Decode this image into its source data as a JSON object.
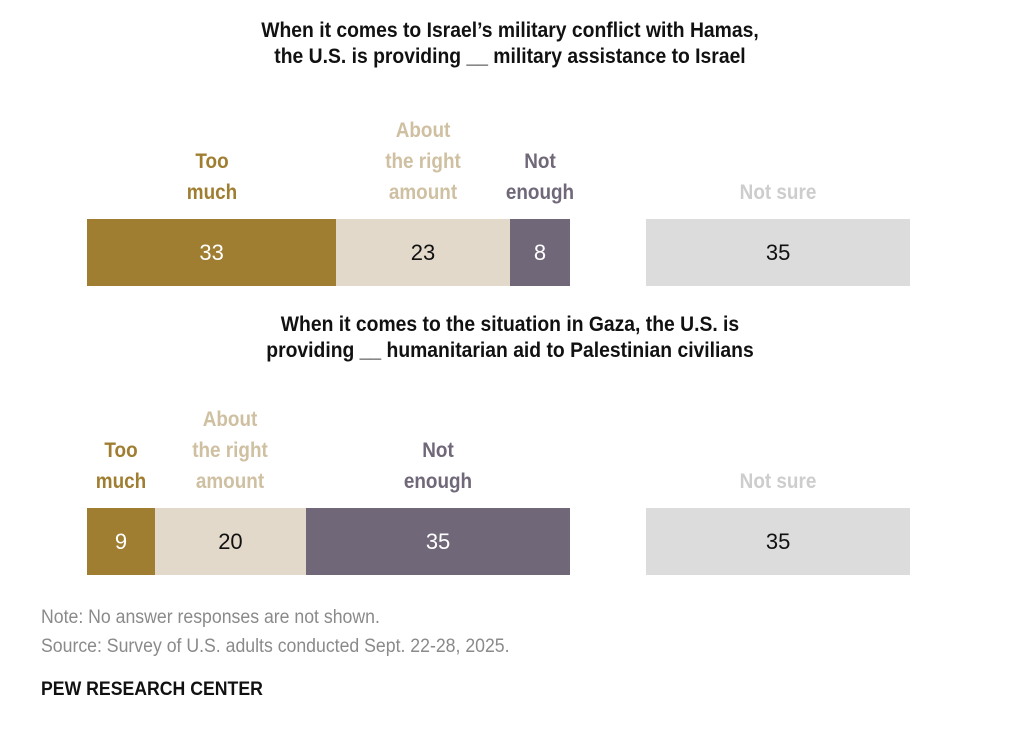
{
  "colors": {
    "too_much": "#a07e31",
    "about_right": "#e2d9ca",
    "not_enough": "#706879",
    "not_sure": "#dcdcdc",
    "label_too_much": "#a07e31",
    "label_about_right": "#cfc0a2",
    "label_not_enough": "#706879",
    "label_not_sure": "#cdcdcd"
  },
  "chart_data": {
    "type": "bar",
    "orientation": "horizontal-stacked",
    "unit": "percent",
    "categories": [
      "Too much",
      "About the right amount",
      "Not enough",
      "Not sure"
    ],
    "panels": [
      {
        "title": "When it comes to Israel’s military conflict with Hamas,\nthe U.S. is providing __ military assistance to Israel",
        "labels": [
          "Too\nmuch",
          "About\nthe right\namount",
          "Not\nenough",
          "Not sure"
        ],
        "values": [
          33,
          23,
          8,
          35
        ]
      },
      {
        "title": "When it comes to the situation in Gaza, the U.S. is\nproviding __ humanitarian aid to Palestinian civilians",
        "labels": [
          "Too\nmuch",
          "About\nthe right\namount",
          "Not\nenough",
          "Not sure"
        ],
        "values": [
          9,
          20,
          35,
          35
        ]
      }
    ],
    "grid": false,
    "legend": "labels-above-bars"
  },
  "footer": {
    "note": "Note: No answer responses are not shown.",
    "source": "Source: Survey of U.S. adults conducted Sept. 22-28, 2025.",
    "brand": "PEW RESEARCH CENTER"
  }
}
